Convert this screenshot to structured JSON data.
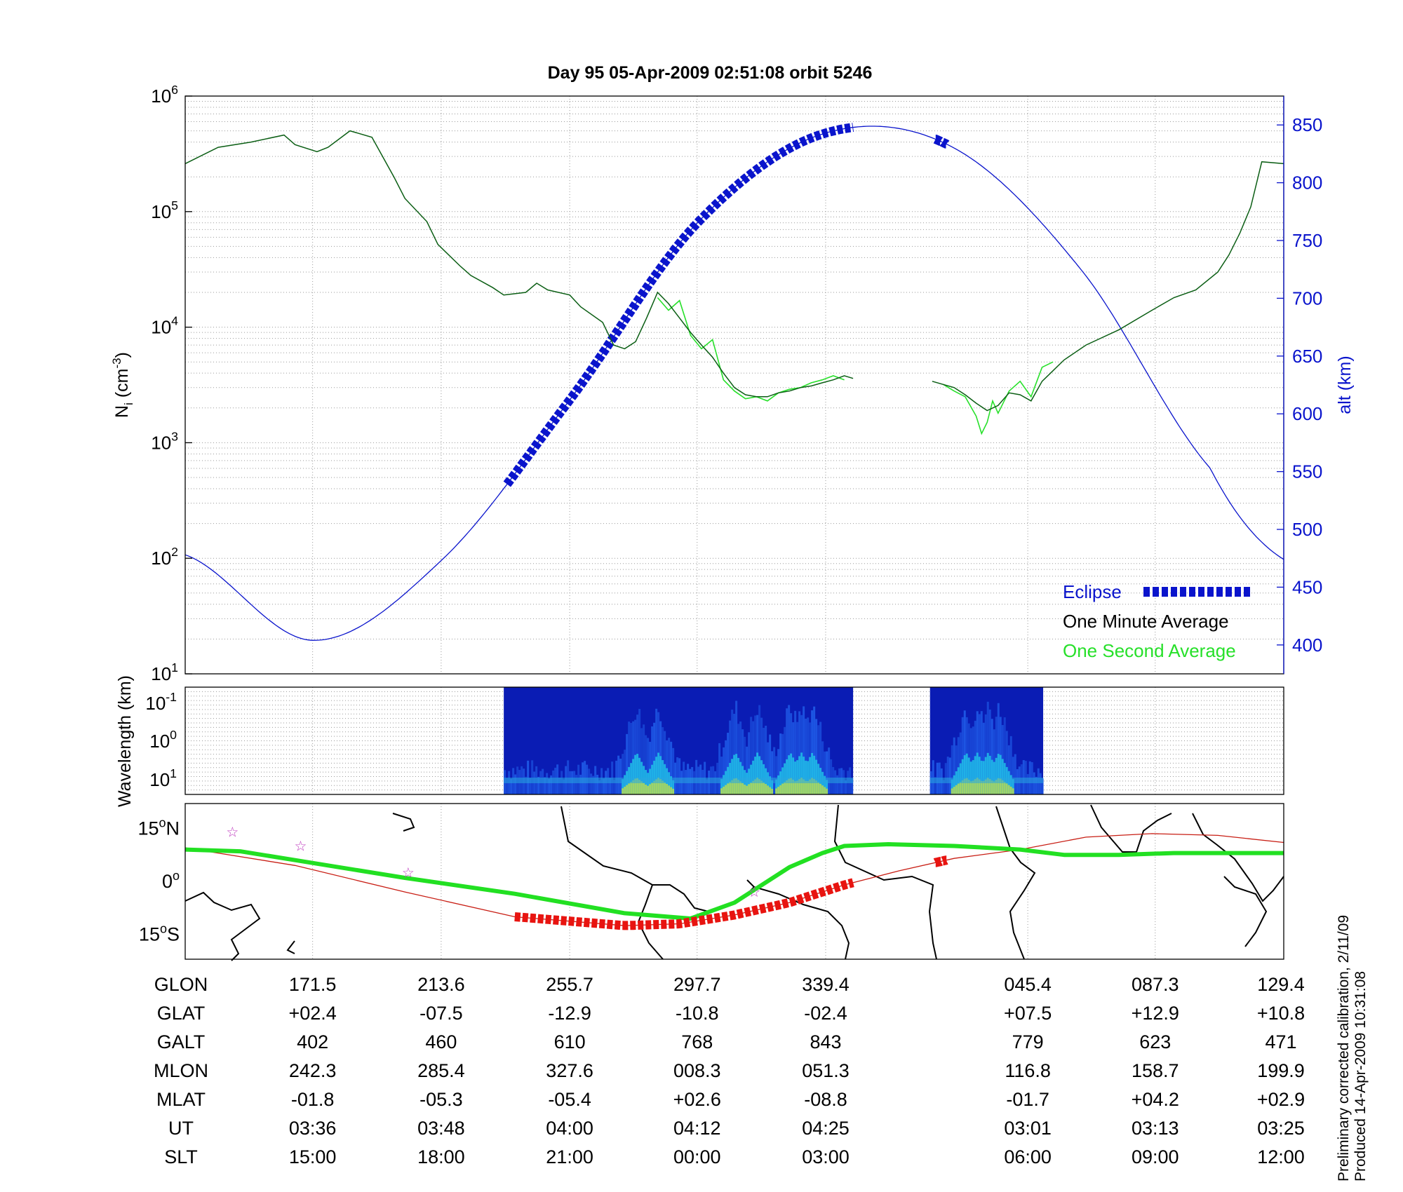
{
  "title": "Day 95  05-Apr-2009 02:51:08   orbit 5246",
  "footnote": {
    "line1": "Preliminary corrected calibration, 2/11/09",
    "line2": "Produced 14-Apr-2009 10:31:08"
  },
  "colors": {
    "alt": "#0a14cc",
    "ni_minute": "#0b5e14",
    "ni_second": "#27e02a",
    "track": "#c81e14",
    "track_eclipse": "#e81410",
    "mag_equator": "#22e022",
    "star": "#c040c0"
  },
  "chart_data": [
    {
      "type": "line",
      "name": "Ion density and altitude",
      "ylabel": "N_i (cm^-3)",
      "ylabel_base": "N",
      "ylabel_sub": "i",
      "ylabel_unit_pre": "(cm",
      "ylabel_unit_sup": "-3",
      "ylabel_unit_post": ")",
      "ylabel_right": "alt (km)",
      "yscale": "log",
      "ylim": [
        10,
        1000000
      ],
      "y_ticks": [
        {
          "base": "10",
          "exp": "1",
          "value": 10
        },
        {
          "base": "10",
          "exp": "2",
          "value": 100
        },
        {
          "base": "10",
          "exp": "3",
          "value": 1000
        },
        {
          "base": "10",
          "exp": "4",
          "value": 10000
        },
        {
          "base": "10",
          "exp": "5",
          "value": 100000
        },
        {
          "base": "10",
          "exp": "6",
          "value": 1000000
        }
      ],
      "y2lim": [
        375,
        875
      ],
      "y2_ticks": [
        "400",
        "450",
        "500",
        "550",
        "600",
        "650",
        "700",
        "750",
        "800",
        "850"
      ],
      "y2_tick_values": [
        400,
        450,
        500,
        550,
        600,
        650,
        700,
        750,
        800,
        850
      ],
      "xlim": [
        0,
        1
      ],
      "grid": true,
      "legend": {
        "placement": "bottom-right",
        "eclipse": "Eclipse",
        "minute": "One Minute Average",
        "second": "One Second Average"
      },
      "series": [
        {
          "name": "alt (km)",
          "axis": "right",
          "x": [
            0,
            0.116,
            0.233,
            0.35,
            0.466,
            0.583,
            0.7,
            0.817,
            0.933,
            1.0
          ],
          "y": [
            478,
            404,
            473,
            612,
            765,
            843,
            830,
            723,
            553,
            474
          ]
        },
        {
          "name": "Eclipse",
          "x_ranges": [
            [
              0.293,
              0.608
            ],
            [
              0.683,
              0.693
            ]
          ]
        },
        {
          "name": "One Minute Average",
          "axis": "left",
          "segments": [
            {
              "x": [
                0,
                0.03,
                0.06,
                0.09,
                0.1,
                0.12,
                0.13,
                0.15,
                0.17,
                0.19,
                0.2,
                0.22,
                0.23,
                0.25,
                0.26,
                0.28,
                0.29,
                0.31,
                0.32,
                0.33,
                0.35,
                0.36,
                0.38,
                0.39,
                0.4,
                0.41,
                0.42,
                0.43,
                0.44,
                0.45,
                0.46,
                0.47,
                0.48,
                0.49,
                0.5,
                0.51,
                0.52,
                0.53,
                0.54,
                0.55,
                0.56,
                0.57,
                0.58,
                0.59,
                0.6,
                0.608
              ],
              "y": [
                260000,
                360000,
                400000,
                460000,
                380000,
                330000,
                360000,
                500000,
                440000,
                200000,
                130000,
                82000,
                52000,
                34000,
                28000,
                22000,
                19000,
                20000,
                24000,
                21000,
                19000,
                15000,
                11000,
                7000,
                6500,
                7500,
                12000,
                20000,
                16000,
                12000,
                9000,
                7000,
                5500,
                4000,
                3000,
                2600,
                2500,
                2500,
                2700,
                2800,
                3000,
                3100,
                3300,
                3500,
                3800,
                3600
              ]
            },
            {
              "x": [
                0.68,
                0.7,
                0.71,
                0.72,
                0.73,
                0.74,
                0.75,
                0.76,
                0.77,
                0.78,
                0.79,
                0.8,
                0.82,
                0.85,
                0.88,
                0.9,
                0.92,
                0.94,
                0.95,
                0.96,
                0.97,
                0.98,
                1.0
              ],
              "y": [
                3400,
                3000,
                2600,
                2200,
                1900,
                2100,
                2700,
                2600,
                2300,
                3400,
                4200,
                5200,
                7000,
                9500,
                14000,
                18000,
                21000,
                30000,
                42000,
                65000,
                110000,
                270000,
                260000
              ]
            }
          ]
        },
        {
          "name": "One Second Average",
          "axis": "left",
          "segments": [
            {
              "x": [
                0.43,
                0.44,
                0.45,
                0.46,
                0.47,
                0.48,
                0.49,
                0.5,
                0.51,
                0.52,
                0.53,
                0.54,
                0.55,
                0.56,
                0.57,
                0.58,
                0.59,
                0.6
              ],
              "y": [
                18000,
                14000,
                17000,
                8500,
                6500,
                7800,
                3500,
                2800,
                2400,
                2500,
                2300,
                2700,
                2900,
                3000,
                3300,
                3500,
                3800,
                3500
              ]
            },
            {
              "x": [
                0.69,
                0.7,
                0.71,
                0.72,
                0.725,
                0.73,
                0.735,
                0.74,
                0.75,
                0.76,
                0.77,
                0.78,
                0.79
              ],
              "y": [
                3200,
                2800,
                2500,
                1700,
                1200,
                1500,
                2300,
                1800,
                2800,
                3400,
                2500,
                4500,
                5000
              ]
            }
          ]
        }
      ]
    },
    {
      "type": "heatmap",
      "name": "Wavelength spectrogram",
      "ylabel": "Wavelength (km)",
      "y_ticks": [
        {
          "base": "10",
          "exp": "-1"
        },
        {
          "base": "10",
          "exp": "0"
        },
        {
          "base": "10",
          "exp": "1"
        }
      ],
      "data_ranges": [
        [
          0.29,
          0.608
        ],
        [
          0.678,
          0.781
        ]
      ],
      "intense_x": [
        0.41,
        0.43,
        0.5,
        0.52,
        0.55,
        0.56,
        0.57,
        0.71,
        0.72,
        0.73,
        0.74
      ]
    },
    {
      "type": "line",
      "name": "Ground track map",
      "y_ticks": [
        {
          "value": "15",
          "hemi": "N"
        },
        {
          "value": "0",
          "hemi": ""
        },
        {
          "value": "15",
          "hemi": "S"
        }
      ],
      "ylim": [
        -22,
        22
      ],
      "series": [
        {
          "name": "orbit track",
          "x": [
            0,
            0.1,
            0.2,
            0.3,
            0.4,
            0.45,
            0.5,
            0.55,
            0.6,
            0.65,
            0.7,
            0.76,
            0.82,
            0.88,
            0.94,
            1.0
          ],
          "y": [
            9.5,
            4.5,
            -3,
            -10,
            -12.5,
            -12,
            -9.5,
            -6,
            -1,
            3,
            6.5,
            9,
            12.5,
            13.5,
            13,
            11
          ]
        },
        {
          "name": "magnetic equator",
          "x": [
            0,
            0.05,
            0.1,
            0.2,
            0.3,
            0.4,
            0.46,
            0.5,
            0.55,
            0.58,
            0.6,
            0.64,
            0.7,
            0.76,
            0.8,
            0.85,
            0.9,
            0.95,
            1.0
          ],
          "y": [
            9,
            8.5,
            6,
            1,
            -3.5,
            -9,
            -10.5,
            -6,
            4,
            8,
            10,
            10.5,
            10,
            9,
            7.5,
            7.5,
            8,
            8,
            8
          ]
        },
        {
          "name": "eclipse track",
          "x_ranges": [
            [
              0.3,
              0.608
            ],
            [
              0.683,
              0.693
            ]
          ]
        }
      ],
      "stars": [
        [
          0.043,
          14
        ],
        [
          0.105,
          10
        ],
        [
          0.203,
          2.5
        ],
        [
          0.518,
          -3
        ]
      ]
    }
  ],
  "table": {
    "rows": [
      {
        "label": "GLON",
        "values": [
          "171.5",
          "213.6",
          "255.7",
          "297.7",
          "339.4",
          "045.4",
          "087.3",
          "129.4"
        ]
      },
      {
        "label": "GLAT",
        "values": [
          "+02.4",
          "-07.5",
          "-12.9",
          "-10.8",
          "-02.4",
          "+07.5",
          "+12.9",
          "+10.8"
        ]
      },
      {
        "label": "GALT",
        "values": [
          "402",
          "460",
          "610",
          "768",
          "843",
          "779",
          "623",
          "471"
        ]
      },
      {
        "label": "MLON",
        "values": [
          "242.3",
          "285.4",
          "327.6",
          "008.3",
          "051.3",
          "116.8",
          "158.7",
          "199.9"
        ]
      },
      {
        "label": "MLAT",
        "values": [
          "-01.8",
          "-05.3",
          "-05.4",
          "+02.6",
          "-08.8",
          "-01.7",
          "+04.2",
          "+02.9"
        ]
      },
      {
        "label": "UT",
        "values": [
          "03:36",
          "03:48",
          "04:00",
          "04:12",
          "04:25",
          "03:01",
          "03:13",
          "03:25"
        ]
      },
      {
        "label": "SLT",
        "values": [
          "15:00",
          "18:00",
          "21:00",
          "00:00",
          "03:00",
          "06:00",
          "09:00",
          "12:00"
        ]
      }
    ],
    "column_x": [
      0.116,
      0.233,
      0.35,
      0.466,
      0.583,
      0.767,
      0.883,
      1.0
    ]
  }
}
